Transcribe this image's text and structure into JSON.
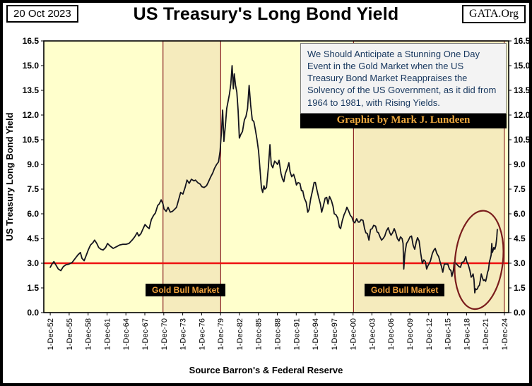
{
  "header": {
    "date": "20 Oct 2023",
    "title": "US Treasury's Long Bond Yield",
    "logo": "GATA.Org"
  },
  "annotation": {
    "text": "We Should Anticipate a Stunning One Day Event in the Gold Market when the US Treasury Bond Market Reappraises the Solvency of the US Government, as it did from 1964 to 1981,  with Rising Yields.",
    "credit": "Graphic by Mark J. Lundeen"
  },
  "footer": {
    "source": "Source Barron's  &  Federal Reserve"
  },
  "chart_data": {
    "type": "line",
    "title": "US Treasury's Long Bond Yield",
    "ylabel": "US Treasury  Long Bond Yield",
    "ylim": [
      0.0,
      16.5
    ],
    "ytick_step": 1.5,
    "xlim": [
      1951.9,
      2025.6
    ],
    "grid": false,
    "legend": "none",
    "xtick_labels": [
      "1-Dec-52",
      "1-Dec-55",
      "1-Dec-58",
      "1-Dec-61",
      "1-Dec-64",
      "1-Dec-67",
      "1-Dec-70",
      "1-Dec-73",
      "1-Dec-76",
      "1-Dec-79",
      "1-Dec-82",
      "1-Dec-85",
      "1-Dec-88",
      "1-Dec-91",
      "1-Dec-94",
      "1-Dec-97",
      "1-Dec-00",
      "1-Dec-03",
      "1-Dec-06",
      "1-Dec-09",
      "1-Dec-12",
      "1-Dec-15",
      "1-Dec-18",
      "1-Dec-21",
      "1-Dec-24"
    ],
    "xtick_years": [
      1952.92,
      1955.92,
      1958.92,
      1961.92,
      1964.92,
      1967.92,
      1970.92,
      1973.92,
      1976.92,
      1979.92,
      1982.92,
      1985.92,
      1988.92,
      1991.92,
      1994.92,
      1997.92,
      2000.92,
      2003.92,
      2006.92,
      2009.92,
      2012.92,
      2015.92,
      2018.92,
      2021.92,
      2024.92
    ],
    "reference_line": {
      "value": 3.0,
      "color": "#ee1111"
    },
    "bands": [
      {
        "label": "Gold Bull Market",
        "from": 1970.8,
        "to": 1979.95
      },
      {
        "label": "Gold Bull Market",
        "from": 2001.0,
        "to": 2024.9
      }
    ],
    "ellipse": {
      "cx_year": 2020.9,
      "cy_value": 3.2,
      "rx_years": 3.8,
      "ry_value": 3.0,
      "tilt_deg": 6
    },
    "colors": {
      "line": "#14141e",
      "background": "#ffffcc",
      "band_fill": "#f5ebbd",
      "band_border": "#8b2525",
      "ellipse": "#7a1c1c"
    },
    "series": [
      {
        "name": "US Treasury Long Bond Yield",
        "points": [
          [
            1952.92,
            2.75
          ],
          [
            1953.2,
            2.95
          ],
          [
            1953.5,
            3.1
          ],
          [
            1953.8,
            2.9
          ],
          [
            1954.2,
            2.65
          ],
          [
            1954.6,
            2.55
          ],
          [
            1955.0,
            2.8
          ],
          [
            1955.4,
            2.9
          ],
          [
            1955.9,
            2.95
          ],
          [
            1956.4,
            3.05
          ],
          [
            1956.9,
            3.3
          ],
          [
            1957.3,
            3.5
          ],
          [
            1957.7,
            3.65
          ],
          [
            1957.95,
            3.3
          ],
          [
            1958.3,
            3.15
          ],
          [
            1958.7,
            3.55
          ],
          [
            1958.95,
            3.8
          ],
          [
            1959.3,
            4.1
          ],
          [
            1959.7,
            4.25
          ],
          [
            1959.95,
            4.4
          ],
          [
            1960.3,
            4.2
          ],
          [
            1960.6,
            3.95
          ],
          [
            1960.95,
            3.85
          ],
          [
            1961.3,
            3.8
          ],
          [
            1961.7,
            3.95
          ],
          [
            1962.0,
            4.2
          ],
          [
            1962.4,
            4.05
          ],
          [
            1962.9,
            3.9
          ],
          [
            1963.4,
            4.0
          ],
          [
            1963.9,
            4.1
          ],
          [
            1964.4,
            4.15
          ],
          [
            1964.9,
            4.15
          ],
          [
            1965.4,
            4.2
          ],
          [
            1965.9,
            4.4
          ],
          [
            1966.3,
            4.6
          ],
          [
            1966.7,
            4.85
          ],
          [
            1966.95,
            4.65
          ],
          [
            1967.3,
            4.8
          ],
          [
            1967.7,
            5.15
          ],
          [
            1967.95,
            5.35
          ],
          [
            1968.3,
            5.2
          ],
          [
            1968.6,
            5.1
          ],
          [
            1968.95,
            5.65
          ],
          [
            1969.3,
            5.9
          ],
          [
            1969.6,
            6.05
          ],
          [
            1969.95,
            6.5
          ],
          [
            1970.2,
            6.6
          ],
          [
            1970.5,
            6.85
          ],
          [
            1970.8,
            6.6
          ],
          [
            1970.95,
            6.3
          ],
          [
            1971.3,
            6.15
          ],
          [
            1971.6,
            6.4
          ],
          [
            1971.95,
            6.1
          ],
          [
            1972.3,
            6.15
          ],
          [
            1972.7,
            6.3
          ],
          [
            1972.95,
            6.4
          ],
          [
            1973.3,
            6.9
          ],
          [
            1973.6,
            7.3
          ],
          [
            1973.95,
            7.2
          ],
          [
            1974.3,
            7.6
          ],
          [
            1974.6,
            8.05
          ],
          [
            1974.95,
            7.85
          ],
          [
            1975.3,
            8.1
          ],
          [
            1975.7,
            8.0
          ],
          [
            1975.95,
            8.05
          ],
          [
            1976.3,
            7.9
          ],
          [
            1976.7,
            7.8
          ],
          [
            1976.95,
            7.65
          ],
          [
            1977.3,
            7.6
          ],
          [
            1977.7,
            7.7
          ],
          [
            1977.95,
            7.9
          ],
          [
            1978.3,
            8.2
          ],
          [
            1978.7,
            8.5
          ],
          [
            1978.95,
            8.75
          ],
          [
            1979.3,
            9.0
          ],
          [
            1979.6,
            9.15
          ],
          [
            1979.85,
            9.8
          ],
          [
            1980.1,
            11.2
          ],
          [
            1980.25,
            12.3
          ],
          [
            1980.45,
            10.4
          ],
          [
            1980.7,
            11.4
          ],
          [
            1980.9,
            12.4
          ],
          [
            1981.1,
            12.8
          ],
          [
            1981.35,
            13.3
          ],
          [
            1981.55,
            13.9
          ],
          [
            1981.75,
            15.0
          ],
          [
            1981.85,
            14.3
          ],
          [
            1981.95,
            13.6
          ],
          [
            1982.1,
            14.5
          ],
          [
            1982.3,
            13.8
          ],
          [
            1982.5,
            13.4
          ],
          [
            1982.7,
            12.3
          ],
          [
            1982.9,
            10.6
          ],
          [
            1983.1,
            10.8
          ],
          [
            1983.4,
            11.0
          ],
          [
            1983.7,
            11.7
          ],
          [
            1983.95,
            11.9
          ],
          [
            1984.2,
            12.4
          ],
          [
            1984.45,
            13.8
          ],
          [
            1984.7,
            12.6
          ],
          [
            1984.95,
            11.7
          ],
          [
            1985.2,
            11.6
          ],
          [
            1985.45,
            11.1
          ],
          [
            1985.7,
            10.5
          ],
          [
            1985.95,
            9.8
          ],
          [
            1986.2,
            8.6
          ],
          [
            1986.4,
            7.6
          ],
          [
            1986.6,
            7.3
          ],
          [
            1986.8,
            7.7
          ],
          [
            1986.95,
            7.5
          ],
          [
            1987.2,
            7.6
          ],
          [
            1987.5,
            8.8
          ],
          [
            1987.75,
            10.2
          ],
          [
            1987.95,
            9.0
          ],
          [
            1988.2,
            8.8
          ],
          [
            1988.5,
            9.2
          ],
          [
            1988.75,
            9.1
          ],
          [
            1988.95,
            9.0
          ],
          [
            1989.2,
            9.25
          ],
          [
            1989.5,
            8.45
          ],
          [
            1989.75,
            8.1
          ],
          [
            1989.95,
            7.95
          ],
          [
            1990.2,
            8.45
          ],
          [
            1990.5,
            8.75
          ],
          [
            1990.75,
            9.1
          ],
          [
            1990.95,
            8.55
          ],
          [
            1991.2,
            8.25
          ],
          [
            1991.5,
            8.4
          ],
          [
            1991.75,
            8.1
          ],
          [
            1991.95,
            7.75
          ],
          [
            1992.2,
            7.9
          ],
          [
            1992.5,
            7.85
          ],
          [
            1992.75,
            7.4
          ],
          [
            1992.95,
            7.4
          ],
          [
            1993.2,
            6.95
          ],
          [
            1993.5,
            6.7
          ],
          [
            1993.75,
            6.1
          ],
          [
            1993.95,
            6.25
          ],
          [
            1994.2,
            6.9
          ],
          [
            1994.5,
            7.4
          ],
          [
            1994.75,
            7.9
          ],
          [
            1994.95,
            7.9
          ],
          [
            1995.2,
            7.45
          ],
          [
            1995.5,
            6.95
          ],
          [
            1995.75,
            6.6
          ],
          [
            1995.95,
            6.1
          ],
          [
            1996.2,
            6.45
          ],
          [
            1996.5,
            6.95
          ],
          [
            1996.75,
            7.0
          ],
          [
            1996.95,
            6.6
          ],
          [
            1997.2,
            7.05
          ],
          [
            1997.5,
            6.8
          ],
          [
            1997.75,
            6.45
          ],
          [
            1997.95,
            6.0
          ],
          [
            1998.2,
            5.95
          ],
          [
            1998.5,
            5.75
          ],
          [
            1998.75,
            5.2
          ],
          [
            1998.95,
            5.1
          ],
          [
            1999.2,
            5.55
          ],
          [
            1999.5,
            5.95
          ],
          [
            1999.75,
            6.15
          ],
          [
            1999.95,
            6.4
          ],
          [
            2000.2,
            6.2
          ],
          [
            2000.5,
            5.9
          ],
          [
            2000.75,
            5.8
          ],
          [
            2000.95,
            5.55
          ],
          [
            2001.2,
            5.45
          ],
          [
            2001.5,
            5.7
          ],
          [
            2001.75,
            5.5
          ],
          [
            2001.95,
            5.5
          ],
          [
            2002.2,
            5.65
          ],
          [
            2002.5,
            5.6
          ],
          [
            2002.75,
            5.1
          ],
          [
            2002.95,
            4.85
          ],
          [
            2003.2,
            4.8
          ],
          [
            2003.45,
            4.4
          ],
          [
            2003.7,
            5.05
          ],
          [
            2003.95,
            5.1
          ],
          [
            2004.2,
            5.3
          ],
          [
            2004.5,
            5.25
          ],
          [
            2004.75,
            4.9
          ],
          [
            2004.95,
            4.85
          ],
          [
            2005.2,
            4.6
          ],
          [
            2005.45,
            4.4
          ],
          [
            2005.7,
            4.5
          ],
          [
            2005.95,
            4.65
          ],
          [
            2006.2,
            4.95
          ],
          [
            2006.5,
            5.15
          ],
          [
            2006.75,
            4.85
          ],
          [
            2006.95,
            4.7
          ],
          [
            2007.2,
            4.85
          ],
          [
            2007.45,
            5.1
          ],
          [
            2007.7,
            4.85
          ],
          [
            2007.95,
            4.5
          ],
          [
            2008.2,
            4.35
          ],
          [
            2008.45,
            4.6
          ],
          [
            2008.7,
            4.5
          ],
          [
            2008.85,
            4.2
          ],
          [
            2008.97,
            2.65
          ],
          [
            2009.15,
            3.6
          ],
          [
            2009.4,
            4.2
          ],
          [
            2009.65,
            4.35
          ],
          [
            2009.95,
            4.6
          ],
          [
            2010.2,
            4.65
          ],
          [
            2010.45,
            4.1
          ],
          [
            2010.7,
            3.85
          ],
          [
            2010.95,
            4.3
          ],
          [
            2011.15,
            4.55
          ],
          [
            2011.4,
            4.35
          ],
          [
            2011.65,
            3.6
          ],
          [
            2011.9,
            3.0
          ],
          [
            2012.15,
            3.2
          ],
          [
            2012.4,
            3.1
          ],
          [
            2012.6,
            2.65
          ],
          [
            2012.8,
            2.85
          ],
          [
            2012.95,
            2.95
          ],
          [
            2013.2,
            3.15
          ],
          [
            2013.5,
            3.6
          ],
          [
            2013.75,
            3.8
          ],
          [
            2013.95,
            3.9
          ],
          [
            2014.2,
            3.6
          ],
          [
            2014.5,
            3.4
          ],
          [
            2014.75,
            3.05
          ],
          [
            2014.95,
            2.8
          ],
          [
            2015.15,
            2.45
          ],
          [
            2015.4,
            2.95
          ],
          [
            2015.65,
            2.95
          ],
          [
            2015.95,
            2.95
          ],
          [
            2016.2,
            2.65
          ],
          [
            2016.45,
            2.55
          ],
          [
            2016.6,
            2.2
          ],
          [
            2016.85,
            2.6
          ],
          [
            2016.95,
            3.05
          ],
          [
            2017.2,
            3.0
          ],
          [
            2017.45,
            2.9
          ],
          [
            2017.7,
            2.8
          ],
          [
            2017.95,
            2.75
          ],
          [
            2018.2,
            3.05
          ],
          [
            2018.5,
            3.1
          ],
          [
            2018.8,
            3.4
          ],
          [
            2018.95,
            3.1
          ],
          [
            2019.2,
            2.9
          ],
          [
            2019.45,
            2.55
          ],
          [
            2019.65,
            2.15
          ],
          [
            2019.85,
            2.25
          ],
          [
            2019.95,
            2.35
          ],
          [
            2020.1,
            2.0
          ],
          [
            2020.22,
            1.2
          ],
          [
            2020.35,
            1.45
          ],
          [
            2020.5,
            1.4
          ],
          [
            2020.65,
            1.45
          ],
          [
            2020.8,
            1.6
          ],
          [
            2020.95,
            1.65
          ],
          [
            2021.1,
            1.95
          ],
          [
            2021.25,
            2.35
          ],
          [
            2021.45,
            2.1
          ],
          [
            2021.6,
            1.95
          ],
          [
            2021.75,
            2.0
          ],
          [
            2021.95,
            1.9
          ],
          [
            2022.1,
            2.15
          ],
          [
            2022.25,
            2.45
          ],
          [
            2022.4,
            2.6
          ],
          [
            2022.55,
            3.1
          ],
          [
            2022.7,
            3.3
          ],
          [
            2022.82,
            3.5
          ],
          [
            2022.92,
            4.2
          ],
          [
            2023.0,
            3.65
          ],
          [
            2023.1,
            3.75
          ],
          [
            2023.25,
            3.95
          ],
          [
            2023.4,
            3.85
          ],
          [
            2023.55,
            4.05
          ],
          [
            2023.65,
            4.35
          ],
          [
            2023.72,
            4.6
          ],
          [
            2023.8,
            5.05
          ]
        ]
      }
    ]
  }
}
